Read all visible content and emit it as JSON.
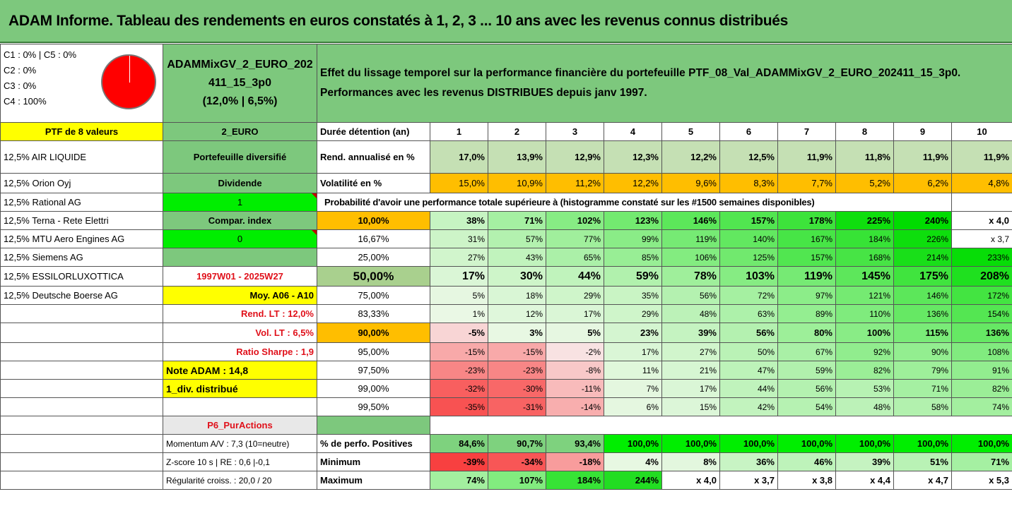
{
  "title": "ADAM Informe. Tableau des rendements en euros constatés à 1, 2, 3 ... 10 ans avec les revenus connus distribués",
  "composition": [
    "C1 : 0% | C5 : 0%",
    "C2 : 0%",
    "C3 : 0%",
    "C4 : 100%"
  ],
  "portfolio_name_1": "ADAMMixGV_2_EURO_202",
  "portfolio_name_2": "411_15_3p0",
  "portfolio_stats": "(12,0% | 6,5%)",
  "effect_line1": "Effet du lissage temporel sur la performance financière du portefeuille PTF_08_Val_ADAMMixGV_2_EURO_202411_15_3p0.",
  "effect_line2": "Performances avec les revenus DISTRIBUES depuis janv 1997.",
  "ptf_label": "PTF de 8 valeurs",
  "currency": "2_EURO",
  "duration_label": "Durée détention (an)",
  "years": [
    "1",
    "2",
    "3",
    "4",
    "5",
    "6",
    "7",
    "8",
    "9",
    "10"
  ],
  "rend_label": "Rend. annualisé en %",
  "rend_values": [
    "17,0%",
    "13,9%",
    "12,9%",
    "12,3%",
    "12,2%",
    "12,5%",
    "11,9%",
    "11,8%",
    "11,9%",
    "11,9%"
  ],
  "vol_label": "Volatilité en %",
  "vol_values": [
    "15,0%",
    "10,9%",
    "11,2%",
    "12,2%",
    "9,6%",
    "8,3%",
    "7,7%",
    "5,2%",
    "6,2%",
    "4,8%"
  ],
  "prob_header": "Probabilité d'avoir une performance totale supérieure à (histogramme constaté sur les #1500 semaines disponibles)",
  "holdings": [
    "12,5% AIR LIQUIDE",
    "12,5% Orion Oyj",
    "12,5% Rational AG",
    "12,5% Terna - Rete Elettri",
    "12,5% MTU Aero Engines AG",
    "12,5% Siemens AG",
    "12,5% ESSILORLUXOTTICA",
    "12,5% Deutsche Boerse AG"
  ],
  "side": {
    "diversified": "Portefeuille diversifié",
    "dividend": "Dividende",
    "dividend_value": "1",
    "compar_index": "Compar. index",
    "compar_value": "0",
    "period": "1997W01 - 2025W27",
    "moy": "Moy. A06 - A10",
    "rend_lt": "Rend. LT : 12,0%",
    "vol_lt": "Vol. LT : 6,5%",
    "sharpe": "Ratio Sharpe : 1,9",
    "note": "Note ADAM : 14,8",
    "div_distrib": "1_div. distribué",
    "p6": "P6_PurActions",
    "momentum": "Momentum A/V : 7,3 (10=neutre)",
    "zscore": "Z-score 10 s | RE : 0,6 |-0,1",
    "regularite": "Régularité croiss. : 20,0 / 20"
  },
  "prob_rows": [
    {
      "p": "10,00%",
      "v": [
        "38%",
        "71%",
        "102%",
        "123%",
        "146%",
        "157%",
        "178%",
        "225%",
        "240%",
        "x 4,0"
      ]
    },
    {
      "p": "16,67%",
      "v": [
        "31%",
        "57%",
        "77%",
        "99%",
        "119%",
        "140%",
        "167%",
        "184%",
        "226%",
        "x 3,7"
      ]
    },
    {
      "p": "25,00%",
      "v": [
        "27%",
        "43%",
        "65%",
        "85%",
        "106%",
        "125%",
        "157%",
        "168%",
        "214%",
        "233%"
      ]
    },
    {
      "p": "50,00%",
      "v": [
        "17%",
        "30%",
        "44%",
        "59%",
        "78%",
        "103%",
        "119%",
        "145%",
        "175%",
        "208%"
      ]
    },
    {
      "p": "75,00%",
      "v": [
        "5%",
        "18%",
        "29%",
        "35%",
        "56%",
        "72%",
        "97%",
        "121%",
        "146%",
        "172%"
      ]
    },
    {
      "p": "83,33%",
      "v": [
        "1%",
        "12%",
        "17%",
        "29%",
        "48%",
        "63%",
        "89%",
        "110%",
        "136%",
        "154%"
      ]
    },
    {
      "p": "90,00%",
      "v": [
        "-5%",
        "3%",
        "5%",
        "23%",
        "39%",
        "56%",
        "80%",
        "100%",
        "115%",
        "136%"
      ]
    },
    {
      "p": "95,00%",
      "v": [
        "-15%",
        "-15%",
        "-2%",
        "17%",
        "27%",
        "50%",
        "67%",
        "92%",
        "90%",
        "108%"
      ]
    },
    {
      "p": "97,50%",
      "v": [
        "-23%",
        "-23%",
        "-8%",
        "11%",
        "21%",
        "47%",
        "59%",
        "82%",
        "79%",
        "91%"
      ]
    },
    {
      "p": "99,00%",
      "v": [
        "-32%",
        "-30%",
        "-11%",
        "7%",
        "17%",
        "44%",
        "56%",
        "53%",
        "71%",
        "82%"
      ]
    },
    {
      "p": "99,50%",
      "v": [
        "-35%",
        "-31%",
        "-14%",
        "6%",
        "15%",
        "42%",
        "54%",
        "48%",
        "58%",
        "74%"
      ]
    }
  ],
  "pos_label": "% de perfo. Positives",
  "pos_values": [
    "84,6%",
    "90,7%",
    "93,4%",
    "100,0%",
    "100,0%",
    "100,0%",
    "100,0%",
    "100,0%",
    "100,0%",
    "100,0%"
  ],
  "min_label": "Minimum",
  "min_values": [
    "-39%",
    "-34%",
    "-18%",
    "4%",
    "8%",
    "36%",
    "46%",
    "39%",
    "51%",
    "71%"
  ],
  "max_label": "Maximum",
  "max_values": [
    "74%",
    "107%",
    "184%",
    "244%",
    "x 4,0",
    "x 3,7",
    "x 3,8",
    "x 4,4",
    "x 4,7",
    "x 5,3"
  ]
}
